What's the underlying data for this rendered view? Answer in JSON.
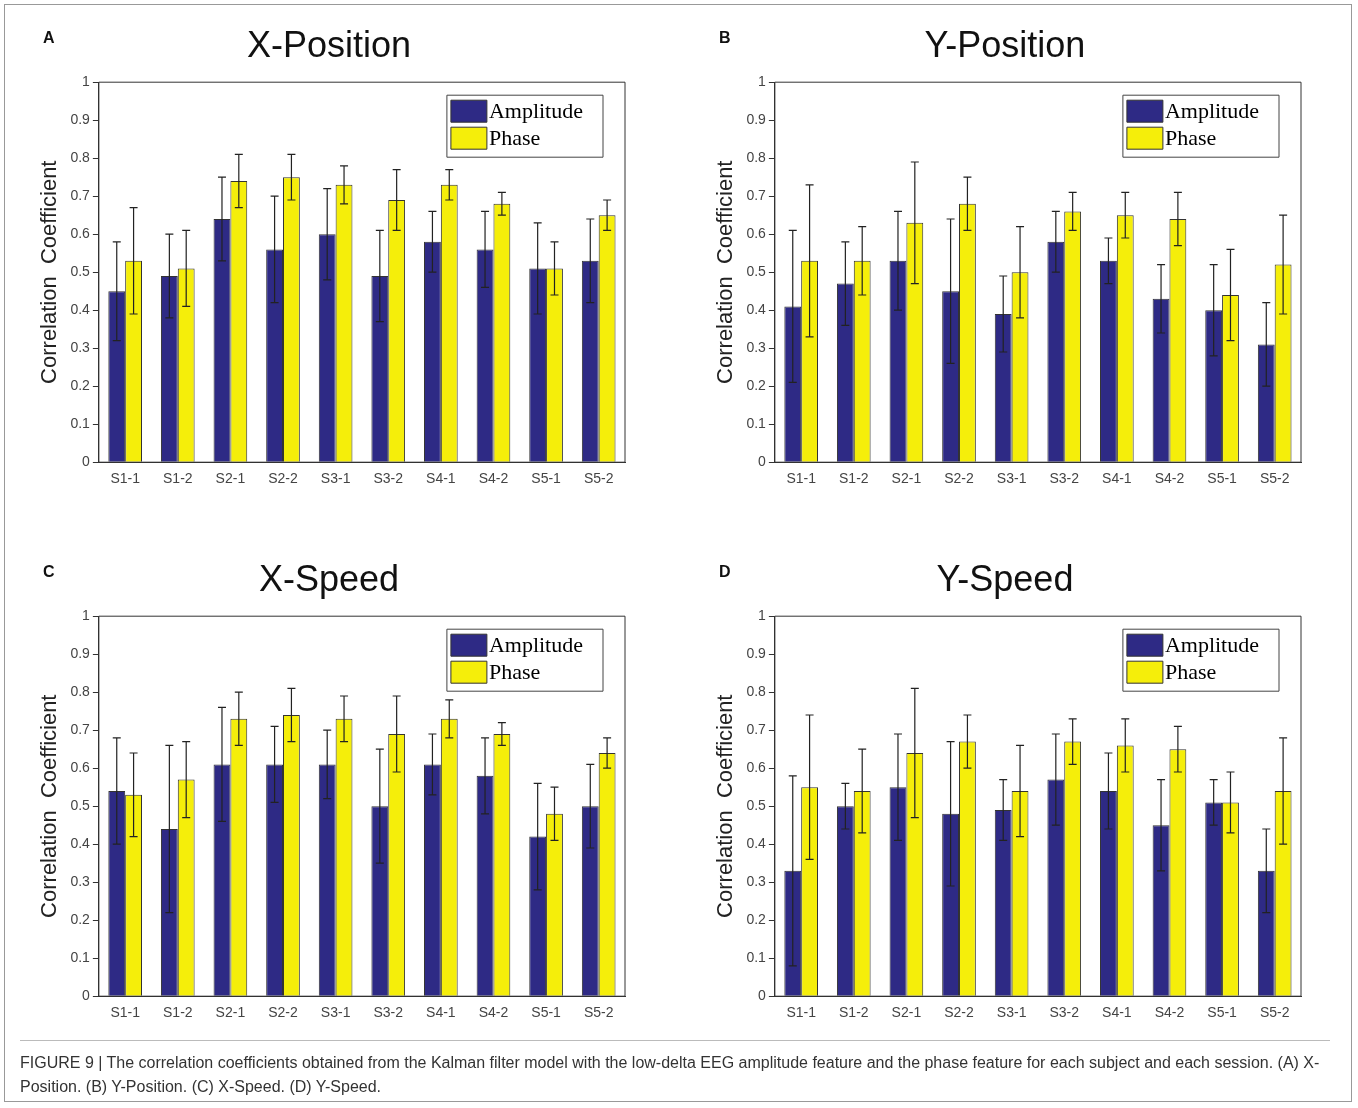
{
  "chart_data": [
    {
      "type": "bar",
      "title": "X-Position",
      "ylabel": "Correlation  Coefficient",
      "annotations": [
        "A",
        "FIGURE 9 | The correlation coefficients obtained from the Kalman filter model with the low-delta EEG amplitude feature and the phase feature for each subject and each session. (A) X-Position. (B) Y-Position. (C) X-Speed. (D) Y-Speed."
      ],
      "categories": [
        "S1-1",
        "S1-2",
        "S2-1",
        "S2-2",
        "S3-1",
        "S3-2",
        "S4-1",
        "S4-2",
        "S5-1",
        "S5-2"
      ],
      "ylim": [
        0,
        1
      ],
      "yticks": [
        0,
        0.1,
        0.2,
        0.3,
        0.4,
        0.5,
        0.6,
        0.7,
        0.8,
        0.9,
        1
      ],
      "grid": false,
      "legend": "top right",
      "series": [
        {
          "name": "Amplitude",
          "color": "#2e2a85",
          "values": [
            0.45,
            0.49,
            0.64,
            0.56,
            0.6,
            0.49,
            0.58,
            0.56,
            0.51,
            0.53
          ],
          "errors": [
            0.13,
            0.11,
            0.11,
            0.14,
            0.12,
            0.12,
            0.08,
            0.1,
            0.12,
            0.11
          ]
        },
        {
          "name": "Phase",
          "color": "#f5ee0a",
          "values": [
            0.53,
            0.51,
            0.74,
            0.75,
            0.73,
            0.69,
            0.73,
            0.68,
            0.51,
            0.65
          ],
          "errors": [
            0.14,
            0.1,
            0.07,
            0.06,
            0.05,
            0.08,
            0.04,
            0.03,
            0.07,
            0.04
          ]
        }
      ]
    },
    {
      "type": "bar",
      "title": "Y-Position",
      "ylabel": "Correlation  Coefficient",
      "annotations": [
        "B"
      ],
      "categories": [
        "S1-1",
        "S1-2",
        "S2-1",
        "S2-2",
        "S3-1",
        "S3-2",
        "S4-1",
        "S4-2",
        "S5-1",
        "S5-2"
      ],
      "ylim": [
        0,
        1
      ],
      "yticks": [
        0,
        0.1,
        0.2,
        0.3,
        0.4,
        0.5,
        0.6,
        0.7,
        0.8,
        0.9,
        1
      ],
      "grid": false,
      "legend": "top right",
      "series": [
        {
          "name": "Amplitude",
          "color": "#2e2a85",
          "values": [
            0.41,
            0.47,
            0.53,
            0.45,
            0.39,
            0.58,
            0.53,
            0.43,
            0.4,
            0.31
          ],
          "errors": [
            0.2,
            0.11,
            0.13,
            0.19,
            0.1,
            0.08,
            0.06,
            0.09,
            0.12,
            0.11
          ]
        },
        {
          "name": "Phase",
          "color": "#f5ee0a",
          "values": [
            0.53,
            0.53,
            0.63,
            0.68,
            0.5,
            0.66,
            0.65,
            0.64,
            0.44,
            0.52
          ],
          "errors": [
            0.2,
            0.09,
            0.16,
            0.07,
            0.12,
            0.05,
            0.06,
            0.07,
            0.12,
            0.13
          ]
        }
      ]
    },
    {
      "type": "bar",
      "title": "X-Speed",
      "ylabel": "Correlation  Coefficient",
      "annotations": [
        "C"
      ],
      "categories": [
        "S1-1",
        "S1-2",
        "S2-1",
        "S2-2",
        "S3-1",
        "S3-2",
        "S4-1",
        "S4-2",
        "S5-1",
        "S5-2"
      ],
      "ylim": [
        0,
        1
      ],
      "yticks": [
        0,
        0.1,
        0.2,
        0.3,
        0.4,
        0.5,
        0.6,
        0.7,
        0.8,
        0.9,
        1
      ],
      "grid": false,
      "legend": "top right",
      "series": [
        {
          "name": "Amplitude",
          "color": "#2e2a85",
          "values": [
            0.54,
            0.44,
            0.61,
            0.61,
            0.61,
            0.5,
            0.61,
            0.58,
            0.42,
            0.5
          ],
          "errors": [
            0.14,
            0.22,
            0.15,
            0.1,
            0.09,
            0.15,
            0.08,
            0.1,
            0.14,
            0.11
          ]
        },
        {
          "name": "Phase",
          "color": "#f5ee0a",
          "values": [
            0.53,
            0.57,
            0.73,
            0.74,
            0.73,
            0.69,
            0.73,
            0.69,
            0.48,
            0.64
          ],
          "errors": [
            0.11,
            0.1,
            0.07,
            0.07,
            0.06,
            0.1,
            0.05,
            0.03,
            0.07,
            0.04
          ]
        }
      ]
    },
    {
      "type": "bar",
      "title": "Y-Speed",
      "ylabel": "Correlation  Coefficient",
      "annotations": [
        "D"
      ],
      "categories": [
        "S1-1",
        "S1-2",
        "S2-1",
        "S2-2",
        "S3-1",
        "S3-2",
        "S4-1",
        "S4-2",
        "S5-1",
        "S5-2"
      ],
      "ylim": [
        0,
        1
      ],
      "yticks": [
        0,
        0.1,
        0.2,
        0.3,
        0.4,
        0.5,
        0.6,
        0.7,
        0.8,
        0.9,
        1
      ],
      "grid": false,
      "legend": "top right",
      "series": [
        {
          "name": "Amplitude",
          "color": "#2e2a85",
          "values": [
            0.33,
            0.5,
            0.55,
            0.48,
            0.49,
            0.57,
            0.54,
            0.45,
            0.51,
            0.33
          ],
          "errors": [
            0.25,
            0.06,
            0.14,
            0.19,
            0.08,
            0.12,
            0.1,
            0.12,
            0.06,
            0.11
          ]
        },
        {
          "name": "Phase",
          "color": "#f5ee0a",
          "values": [
            0.55,
            0.54,
            0.64,
            0.67,
            0.54,
            0.67,
            0.66,
            0.65,
            0.51,
            0.54
          ],
          "errors": [
            0.19,
            0.11,
            0.17,
            0.07,
            0.12,
            0.06,
            0.07,
            0.06,
            0.08,
            0.14
          ]
        }
      ]
    }
  ]
}
